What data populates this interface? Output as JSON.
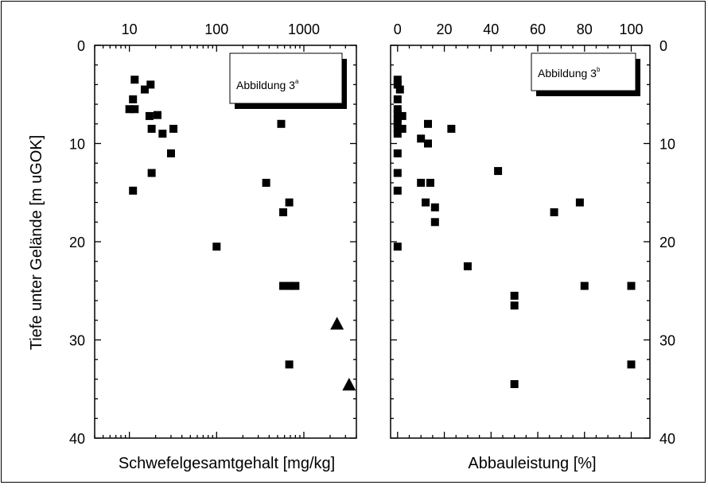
{
  "chart_data": [
    {
      "type": "scatter",
      "xscale": "log",
      "xlim": [
        4,
        4000
      ],
      "ylim": [
        0,
        40
      ],
      "y_inverted": true,
      "xlabel": "Schwefelgesamtgehalt [mg/kg]",
      "ylabel": "Tiefe unter Gelände [m uGOK]",
      "x_tick_labels": [
        "10",
        "100",
        "1000"
      ],
      "x_tick_values": [
        10,
        100,
        1000
      ],
      "y_tick_labels": [
        "0",
        "10",
        "20",
        "30",
        "40"
      ],
      "y_tick_values": [
        0,
        10,
        20,
        30,
        40
      ],
      "grid": false,
      "legend": {
        "title": "Abbildung 3",
        "superscript": "a",
        "placement": "top-right"
      },
      "series": [
        {
          "marker": "square",
          "color": "#000000",
          "points": [
            [
              11.5,
              3.5
            ],
            [
              15,
              4.5
            ],
            [
              17.5,
              4
            ],
            [
              11,
              5.5
            ],
            [
              10,
              6.5
            ],
            [
              11.5,
              6.5
            ],
            [
              17,
              7.2
            ],
            [
              21,
              7.1
            ],
            [
              18,
              8.5
            ],
            [
              24,
              9
            ],
            [
              32,
              8.5
            ],
            [
              550,
              8
            ],
            [
              30,
              11
            ],
            [
              18,
              13
            ],
            [
              11,
              14.8
            ],
            [
              370,
              14
            ],
            [
              680,
              16
            ],
            [
              580,
              17
            ],
            [
              100,
              20.5
            ],
            [
              580,
              24.5
            ],
            [
              700,
              24.5
            ],
            [
              800,
              24.5
            ],
            [
              680,
              32.5
            ]
          ]
        },
        {
          "marker": "triangle",
          "color": "#000000",
          "points": [
            [
              2400,
              28.3
            ],
            [
              3300,
              34.5
            ]
          ]
        }
      ]
    },
    {
      "type": "scatter",
      "xlim": [
        -3,
        108
      ],
      "ylim": [
        0,
        40
      ],
      "y_inverted": true,
      "xlabel": "Abbauleistung [%]",
      "x_tick_labels": [
        "0",
        "20",
        "40",
        "60",
        "80",
        "100"
      ],
      "x_tick_values": [
        0,
        20,
        40,
        60,
        80,
        100
      ],
      "y_tick_labels": [
        "0",
        "10",
        "20",
        "30",
        "40"
      ],
      "y_tick_values": [
        0,
        10,
        20,
        30,
        40
      ],
      "grid": false,
      "legend": {
        "title": "Abbildung 3",
        "superscript": "b",
        "placement": "top-right"
      },
      "series": [
        {
          "marker": "square",
          "color": "#000000",
          "points": [
            [
              0,
              3.5
            ],
            [
              0,
              4
            ],
            [
              1,
              4.5
            ],
            [
              0,
              5.5
            ],
            [
              0,
              6.5
            ],
            [
              0,
              7
            ],
            [
              0,
              7.5
            ],
            [
              0,
              8
            ],
            [
              0,
              8.5
            ],
            [
              0,
              9
            ],
            [
              2,
              7.2
            ],
            [
              2,
              8.5
            ],
            [
              13,
              8
            ],
            [
              23,
              8.5
            ],
            [
              10,
              9.5
            ],
            [
              13,
              10
            ],
            [
              0,
              11
            ],
            [
              0,
              13
            ],
            [
              43,
              12.8
            ],
            [
              10,
              14
            ],
            [
              14,
              14
            ],
            [
              0,
              14.8
            ],
            [
              12,
              16
            ],
            [
              16,
              16.5
            ],
            [
              67,
              17
            ],
            [
              78,
              16
            ],
            [
              16,
              18
            ],
            [
              0,
              20.5
            ],
            [
              30,
              22.5
            ],
            [
              50,
              25.5
            ],
            [
              50,
              26.5
            ],
            [
              80,
              24.5
            ],
            [
              100,
              24.5
            ],
            [
              100,
              32.5
            ],
            [
              50,
              34.5
            ]
          ]
        }
      ]
    }
  ]
}
